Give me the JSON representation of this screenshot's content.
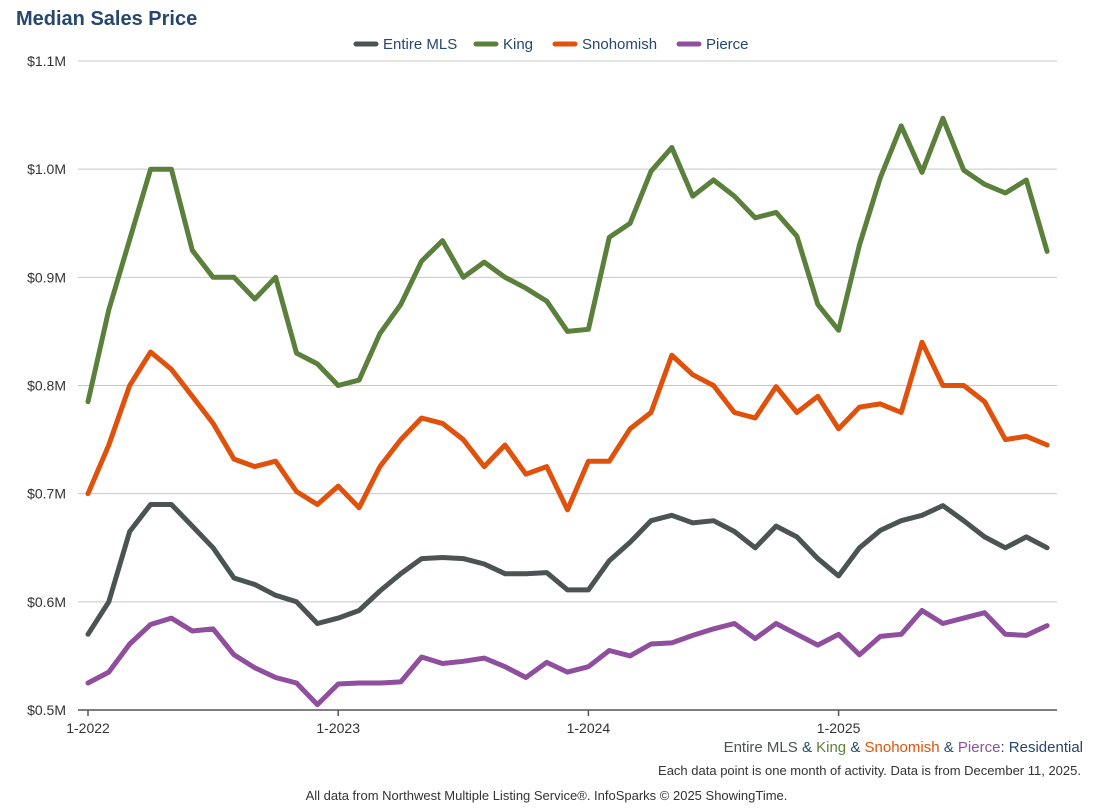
{
  "title": "Median Sales Price",
  "chart_data": {
    "type": "line",
    "title": "Median Sales Price",
    "xlabel": "",
    "ylabel": "",
    "ylim": [
      0.5,
      1.1
    ],
    "y_ticks": [
      0.5,
      0.6,
      0.7,
      0.8,
      0.9,
      1.0,
      1.1
    ],
    "y_tick_labels": [
      "$0.5M",
      "$0.6M",
      "$0.7M",
      "$0.8M",
      "$0.9M",
      "$1.0M",
      "$1.1M"
    ],
    "x_start": "1-2022",
    "x_ticks": [
      0,
      12,
      24,
      36
    ],
    "x_tick_labels": [
      "1-2022",
      "1-2023",
      "1-2024",
      "1-2025"
    ],
    "legend_position": "top-center",
    "grid": true,
    "series": [
      {
        "name": "Entire MLS",
        "color": "#4b5353",
        "values": [
          0.57,
          0.6,
          0.665,
          0.69,
          0.69,
          0.67,
          0.65,
          0.622,
          0.616,
          0.606,
          0.6,
          0.58,
          0.585,
          0.592,
          0.61,
          0.626,
          0.64,
          0.641,
          0.64,
          0.635,
          0.626,
          0.626,
          0.627,
          0.611,
          0.611,
          0.638,
          0.655,
          0.675,
          0.68,
          0.673,
          0.675,
          0.665,
          0.65,
          0.67,
          0.66,
          0.64,
          0.624,
          0.65,
          0.666,
          0.675,
          0.68,
          0.689,
          0.675,
          0.66,
          0.65,
          0.66,
          0.65
        ]
      },
      {
        "name": "King",
        "color": "#5a803b",
        "values": [
          0.785,
          0.87,
          0.935,
          1.0,
          1.0,
          0.925,
          0.9,
          0.9,
          0.88,
          0.9,
          0.83,
          0.82,
          0.8,
          0.805,
          0.848,
          0.875,
          0.915,
          0.934,
          0.9,
          0.914,
          0.9,
          0.89,
          0.878,
          0.85,
          0.852,
          0.937,
          0.95,
          0.998,
          1.02,
          0.975,
          0.99,
          0.975,
          0.955,
          0.96,
          0.938,
          0.875,
          0.851,
          0.93,
          0.992,
          1.04,
          0.997,
          1.047,
          0.999,
          0.986,
          0.978,
          0.99,
          0.924
        ]
      },
      {
        "name": "Snohomish",
        "color": "#e0520c",
        "values": [
          0.7,
          0.745,
          0.8,
          0.831,
          0.815,
          0.79,
          0.765,
          0.732,
          0.725,
          0.73,
          0.702,
          0.69,
          0.707,
          0.687,
          0.725,
          0.75,
          0.77,
          0.765,
          0.75,
          0.725,
          0.745,
          0.718,
          0.725,
          0.685,
          0.73,
          0.73,
          0.76,
          0.775,
          0.828,
          0.81,
          0.8,
          0.775,
          0.77,
          0.799,
          0.775,
          0.79,
          0.76,
          0.78,
          0.783,
          0.775,
          0.84,
          0.8,
          0.8,
          0.785,
          0.75,
          0.753,
          0.745
        ]
      },
      {
        "name": "Pierce",
        "color": "#8f4f9e",
        "values": [
          0.525,
          0.535,
          0.561,
          0.579,
          0.585,
          0.573,
          0.575,
          0.551,
          0.539,
          0.53,
          0.525,
          0.505,
          0.524,
          0.525,
          0.525,
          0.526,
          0.549,
          0.543,
          0.545,
          0.548,
          0.54,
          0.53,
          0.544,
          0.535,
          0.54,
          0.555,
          0.55,
          0.561,
          0.562,
          0.569,
          0.575,
          0.58,
          0.566,
          0.58,
          0.57,
          0.56,
          0.57,
          0.551,
          0.568,
          0.57,
          0.592,
          0.58,
          0.585,
          0.59,
          0.57,
          0.569,
          0.578
        ]
      }
    ]
  },
  "subtitle": {
    "parts": [
      "Entire MLS",
      "King",
      "Snohomish",
      "Pierce"
    ],
    "amp": "&",
    "suffix": ": Residential"
  },
  "note": "Each data point is one month of activity. Data is from December 11, 2025.",
  "footer": "All data from Northwest Multiple Listing Service®. InfoSparks © 2025 ShowingTime."
}
